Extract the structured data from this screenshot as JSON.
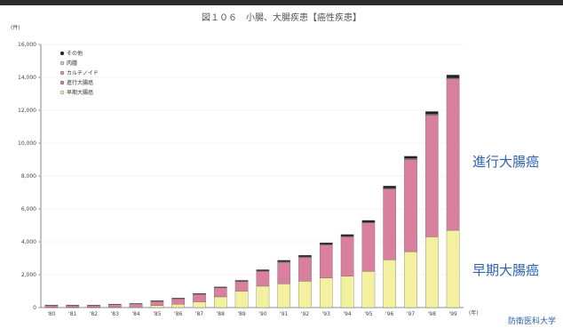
{
  "title": "図１０６　小腸、大腸疾患【癌性疾患】",
  "chart_data": {
    "type": "bar",
    "stacked": true,
    "y_unit": "(件)",
    "x_unit": "(年)",
    "ylim": [
      0,
      16000
    ],
    "yticks": [
      "0",
      "2,000",
      "4,000",
      "6,000",
      "8,000",
      "10,000",
      "12,000",
      "14,000",
      "16,000"
    ],
    "categories": [
      "'80",
      "'81",
      "'82",
      "'83",
      "'84",
      "'85",
      "'86",
      "'87",
      "'88",
      "'89",
      "'90",
      "'91",
      "'92",
      "'93",
      "'94",
      "'95",
      "'96",
      "'97",
      "'98",
      "'99"
    ],
    "series": [
      {
        "name": "早期大腸癌",
        "color": "#f3f0a0",
        "values": [
          20,
          20,
          20,
          30,
          40,
          120,
          200,
          350,
          650,
          1000,
          1300,
          1450,
          1600,
          1800,
          1900,
          2200,
          2900,
          3400,
          4300,
          4700
        ]
      },
      {
        "name": "進行大腸癌",
        "color": "#d9809f",
        "values": [
          100,
          100,
          100,
          150,
          180,
          250,
          330,
          450,
          550,
          580,
          900,
          1300,
          1450,
          2000,
          2400,
          2950,
          4300,
          5600,
          7400,
          9200
        ]
      },
      {
        "name": "カルチノイド",
        "color": "#c8a8a8",
        "values": [
          5,
          5,
          5,
          5,
          5,
          10,
          10,
          10,
          10,
          10,
          20,
          20,
          20,
          20,
          20,
          20,
          30,
          30,
          30,
          30
        ]
      },
      {
        "name": "肉腫",
        "color": "#cfcfcf",
        "values": [
          5,
          5,
          5,
          5,
          5,
          10,
          10,
          10,
          10,
          10,
          20,
          20,
          20,
          20,
          20,
          20,
          30,
          30,
          30,
          30
        ]
      },
      {
        "name": "その他",
        "color": "#222222",
        "values": [
          20,
          20,
          20,
          20,
          20,
          30,
          30,
          40,
          40,
          50,
          60,
          80,
          90,
          100,
          100,
          110,
          130,
          140,
          160,
          180
        ]
      }
    ],
    "legend": [
      "その他",
      "肉腫",
      "カルチノイド",
      "進行大腸癌",
      "早期大腸癌"
    ],
    "annotations": {
      "advanced": "進行大腸癌",
      "early": "早期大腸癌"
    },
    "legend_position": "top-left"
  },
  "source": "防衛医科大学"
}
